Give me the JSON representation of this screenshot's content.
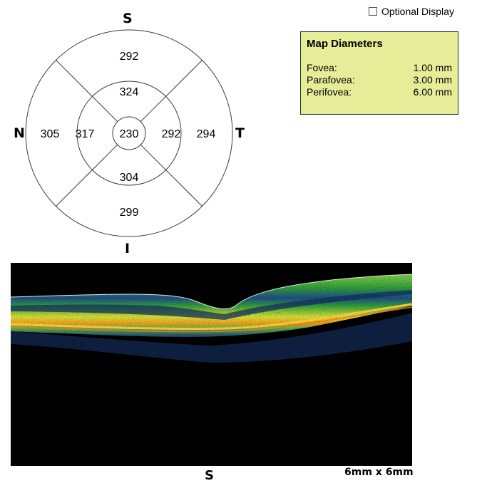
{
  "map": {
    "directions": {
      "superior": "S",
      "inferior": "I",
      "nasal": "N",
      "temporal": "T"
    },
    "sectors": {
      "center": "230",
      "inner_superior": "324",
      "inner_inferior": "304",
      "inner_nasal": "317",
      "inner_temporal": "292",
      "outer_superior": "292",
      "outer_inferior": "299",
      "outer_nasal": "305",
      "outer_temporal": "294"
    }
  },
  "optional_display": {
    "label": "Optional Display",
    "checked": false
  },
  "map_diameters": {
    "title": "Map Diameters",
    "rows": [
      {
        "label": "Fovea:",
        "value": "1.00 mm"
      },
      {
        "label": "Parafovea:",
        "value": "3.00 mm"
      },
      {
        "label": "Perifovea:",
        "value": "6.00 mm"
      }
    ],
    "background_color": "#e7ec98"
  },
  "scan": {
    "orientation_label": "S",
    "scale_label": "6mm x 6mm"
  }
}
